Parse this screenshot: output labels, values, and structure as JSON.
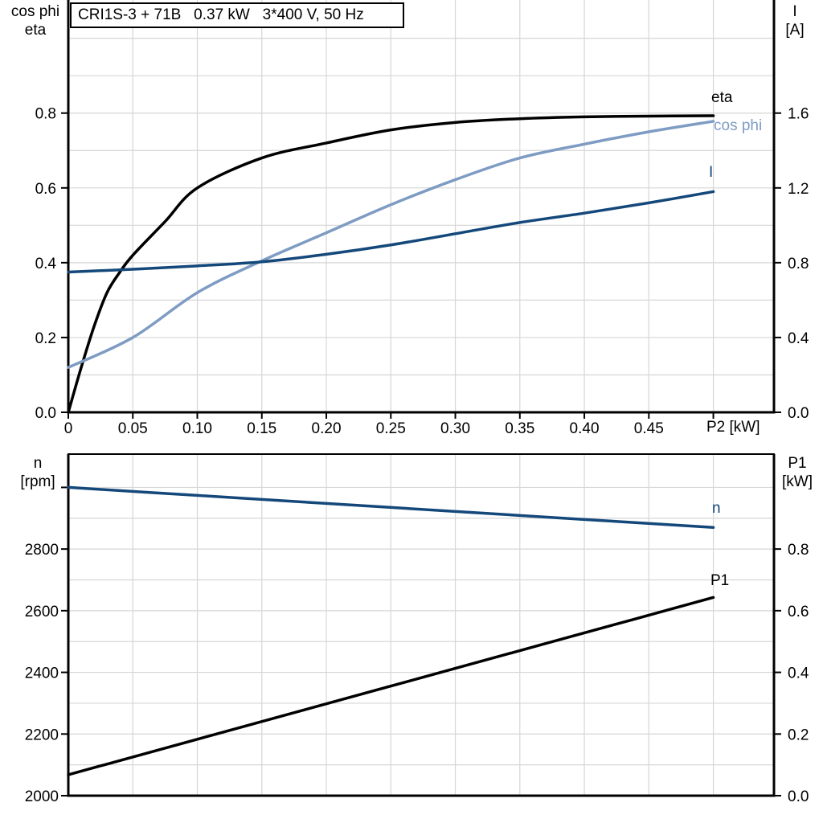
{
  "title_box": {
    "text": "CRI1S-3 + 71B   0.37 kW   3*400 V, 50 Hz"
  },
  "colors": {
    "black": "#000000",
    "dark_blue": "#14487A",
    "light_blue": "#7E9CC3",
    "grid": "#D6D6D6",
    "background": "#FFFFFF"
  },
  "top_chart": {
    "left_axis_title_1": "cos phi",
    "left_axis_title_2": "eta",
    "right_axis_title_1": "I",
    "right_axis_title_2": "[A]",
    "x_axis_title": "P2 [kW]",
    "curve_labels": {
      "eta": "eta",
      "cos_phi": "cos phi",
      "current": "I"
    }
  },
  "bottom_chart": {
    "left_axis_title_1": "n",
    "left_axis_title_2": "[rpm]",
    "right_axis_title_1": "P1",
    "right_axis_title_2": "[kW]",
    "curve_labels": {
      "n": "n",
      "p1": "P1"
    }
  },
  "chart_data": [
    {
      "type": "line",
      "title": "CRI1S-3 + 71B 0.37 kW 3*400 V, 50 Hz",
      "xlabel": "P2 [kW]",
      "ylabel_left": "cos phi / eta",
      "ylabel_right": "I [A]",
      "xlim": [
        0,
        0.547
      ],
      "ylim_left": [
        0,
        1.01
      ],
      "ylim_right": [
        0,
        2.02
      ],
      "grid": true,
      "legend_position": "right-inside",
      "axes": {
        "x": {
          "grid": [
            0.05,
            0.1,
            0.15,
            0.2,
            0.25,
            0.3,
            0.35,
            0.4,
            0.45,
            0.5
          ],
          "tick_values": [
            0,
            0.05,
            0.1,
            0.15,
            0.2,
            0.25,
            0.3,
            0.35,
            0.4,
            0.45,
            0.5
          ],
          "tick_labels": [
            "0",
            "0.05",
            "0.10",
            "0.15",
            "0.20",
            "0.25",
            "0.30",
            "0.35",
            "0.40",
            "0.45",
            ""
          ]
        },
        "left": {
          "grid": [
            0.1,
            0.2,
            0.3,
            0.4,
            0.5,
            0.6,
            0.7,
            0.8,
            0.9,
            1.0
          ],
          "tick_values": [
            0,
            0.2,
            0.4,
            0.6,
            0.8
          ],
          "tick_labels": [
            "0.0",
            "0.2",
            "0.4",
            "0.6",
            "0.8"
          ]
        },
        "right": {
          "tick_values": [
            0,
            0.4,
            0.8,
            1.2,
            1.6
          ],
          "tick_labels": [
            "0.0",
            "0.4",
            "0.8",
            "1.2",
            "1.6"
          ]
        }
      },
      "series": [
        {
          "name": "eta",
          "axis": "left",
          "color": "#000000",
          "x": [
            0,
            0.01,
            0.02,
            0.03,
            0.04,
            0.05,
            0.075,
            0.1,
            0.15,
            0.2,
            0.25,
            0.3,
            0.35,
            0.4,
            0.45,
            0.5
          ],
          "y": [
            0,
            0.12,
            0.23,
            0.32,
            0.375,
            0.42,
            0.51,
            0.6,
            0.68,
            0.72,
            0.755,
            0.775,
            0.785,
            0.79,
            0.792,
            0.793
          ]
        },
        {
          "name": "cos phi",
          "axis": "left",
          "color": "#7E9CC3",
          "x": [
            0,
            0.05,
            0.1,
            0.15,
            0.2,
            0.25,
            0.3,
            0.35,
            0.4,
            0.45,
            0.5
          ],
          "y": [
            0.12,
            0.2,
            0.32,
            0.405,
            0.48,
            0.555,
            0.622,
            0.68,
            0.717,
            0.75,
            0.778
          ]
        },
        {
          "name": "I",
          "axis": "right",
          "color": "#14487A",
          "x": [
            0,
            0.05,
            0.1,
            0.15,
            0.2,
            0.25,
            0.3,
            0.35,
            0.4,
            0.45,
            0.5
          ],
          "y": [
            0.75,
            0.765,
            0.783,
            0.805,
            0.845,
            0.895,
            0.955,
            1.015,
            1.065,
            1.12,
            1.18
          ]
        }
      ]
    },
    {
      "type": "line",
      "title": "",
      "xlabel": "",
      "ylabel_left": "n [rpm]",
      "ylabel_right": "P1 [kW]",
      "xlim": [
        0,
        0.547
      ],
      "ylim_left": [
        2000,
        3108
      ],
      "ylim_right": [
        0,
        1.108
      ],
      "grid": true,
      "legend_position": "right-inside",
      "axes": {
        "x": {
          "grid": [
            0.05,
            0.1,
            0.15,
            0.2,
            0.25,
            0.3,
            0.35,
            0.4,
            0.45,
            0.5
          ],
          "tick_values": [],
          "tick_labels": []
        },
        "left": {
          "grid": [
            2100,
            2200,
            2300,
            2400,
            2500,
            2600,
            2700,
            2800,
            2900,
            3000
          ],
          "tick_values": [
            2000,
            2200,
            2400,
            2600,
            2800,
            3000
          ],
          "tick_labels": [
            "2000",
            "2200",
            "2400",
            "2600",
            "2800",
            ""
          ]
        },
        "right": {
          "tick_values": [
            0,
            0.2,
            0.4,
            0.6,
            0.8
          ],
          "tick_labels": [
            "0.0",
            "0.2",
            "0.4",
            "0.6",
            "0.8"
          ]
        }
      },
      "series": [
        {
          "name": "n",
          "axis": "left",
          "color": "#14487A",
          "x": [
            0,
            0.1,
            0.2,
            0.3,
            0.4,
            0.5
          ],
          "y": [
            3000,
            2974,
            2948,
            2922,
            2896,
            2870
          ]
        },
        {
          "name": "P1",
          "axis": "right",
          "color": "#000000",
          "x": [
            0,
            0.1,
            0.2,
            0.3,
            0.4,
            0.5
          ],
          "y": [
            0.068,
            0.183,
            0.298,
            0.413,
            0.528,
            0.643
          ]
        }
      ]
    }
  ]
}
